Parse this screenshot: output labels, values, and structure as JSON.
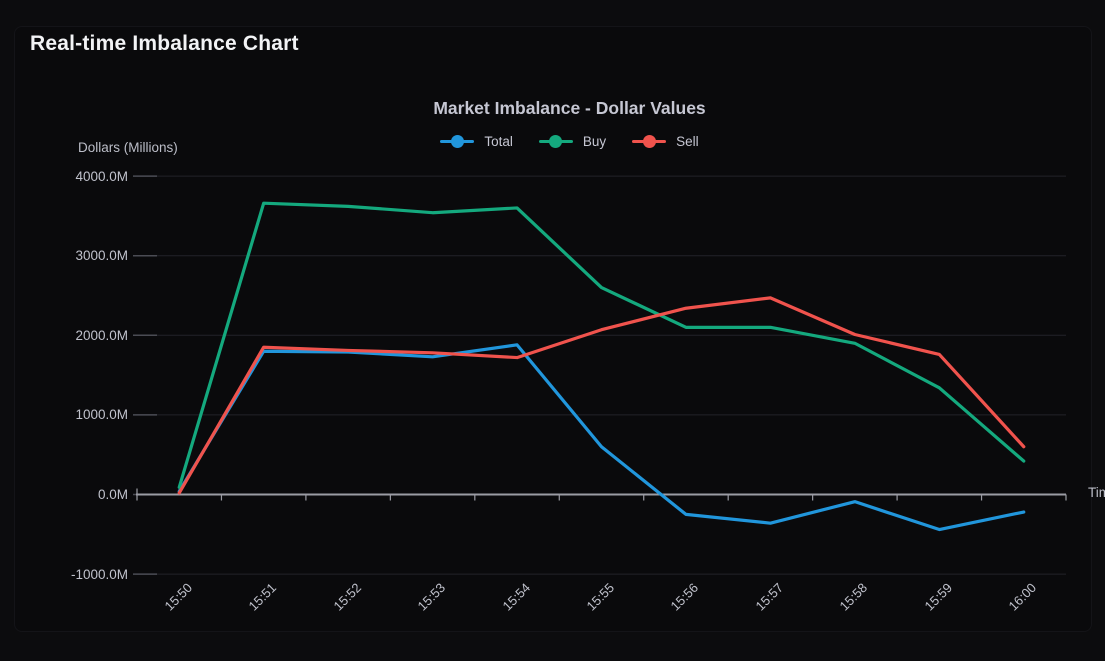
{
  "page": {
    "title": "Real-time Imbalance Chart"
  },
  "chart_data": {
    "type": "line",
    "title": "Market Imbalance - Dollar Values",
    "xlabel": "Time",
    "ylabel": "Dollars (Millions)",
    "legend_position": "top",
    "grid": true,
    "ylim": [
      -1000,
      4000
    ],
    "y_ticks": [
      {
        "value": 4000,
        "label": "4000.0M"
      },
      {
        "value": 3000,
        "label": "3000.0M"
      },
      {
        "value": 2000,
        "label": "2000.0M"
      },
      {
        "value": 1000,
        "label": "1000.0M"
      },
      {
        "value": 0,
        "label": "0.0M"
      },
      {
        "value": -1000,
        "label": "-1000.0M"
      }
    ],
    "categories": [
      "15:50",
      "15:51",
      "15:52",
      "15:53",
      "15:54",
      "15:55",
      "15:56",
      "15:57",
      "15:58",
      "15:59",
      "16:00"
    ],
    "series": [
      {
        "name": "Total",
        "color": "#2196dc",
        "values": [
          40,
          1800,
          1790,
          1730,
          1880,
          600,
          -250,
          -360,
          -90,
          -440,
          -220
        ]
      },
      {
        "name": "Buy",
        "color": "#14a97e",
        "values": [
          90,
          3660,
          3620,
          3540,
          3600,
          2600,
          2100,
          2100,
          1900,
          1340,
          420
        ]
      },
      {
        "name": "Sell",
        "color": "#f0534d",
        "values": [
          20,
          1850,
          1810,
          1780,
          1720,
          2070,
          2340,
          2470,
          2010,
          1760,
          600
        ]
      }
    ],
    "colors": {
      "axis_line": "#9b9ca4",
      "grid_line": "#232329",
      "y_tick_mark": "#4b4c54",
      "text": "#c0c2cc"
    }
  }
}
